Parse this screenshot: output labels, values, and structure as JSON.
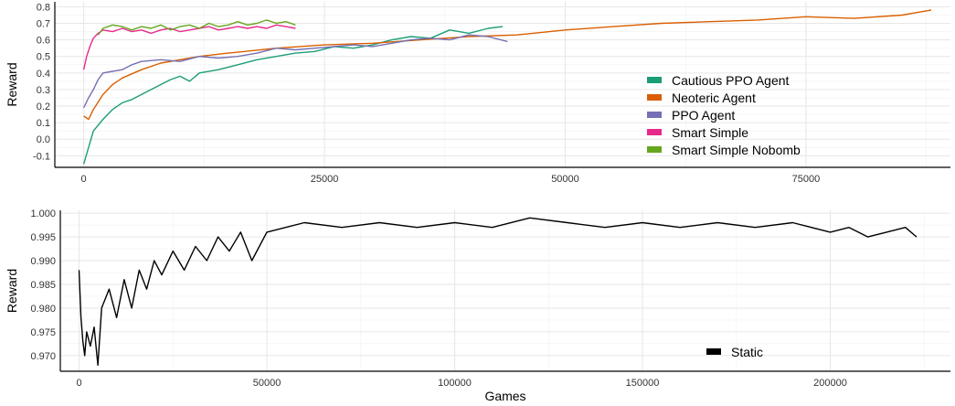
{
  "chart_data": [
    {
      "type": "line",
      "xlabel": "",
      "ylabel": "Reward",
      "xlim": [
        -3000,
        90000
      ],
      "ylim": [
        -0.17,
        0.83
      ],
      "xticks": [
        0,
        25000,
        50000,
        75000
      ],
      "xtick_labels": [
        "0",
        "25000",
        "50000",
        "75000"
      ],
      "yticks": [
        -0.1,
        0.0,
        0.1,
        0.2,
        0.3,
        0.4,
        0.5,
        0.6,
        0.7,
        0.8
      ],
      "ytick_labels": [
        "-0.1",
        "0.0",
        "0.1",
        "0.2",
        "0.3",
        "0.4",
        "0.5",
        "0.6",
        "0.7",
        "0.8"
      ],
      "grid": true,
      "legend_position": "bottom-right",
      "series": [
        {
          "name": "Cautious PPO Agent",
          "color": "#1b9e77",
          "x": [
            0,
            500,
            1000,
            2000,
            3000,
            4000,
            5000,
            6000,
            7000,
            8000,
            9000,
            10000,
            11000,
            12000,
            14000,
            16000,
            18000,
            20000,
            22000,
            24000,
            26000,
            28000,
            30000,
            32000,
            34000,
            36000,
            38000,
            40000,
            42000,
            43500
          ],
          "y": [
            -0.15,
            -0.05,
            0.05,
            0.12,
            0.18,
            0.22,
            0.24,
            0.27,
            0.3,
            0.33,
            0.36,
            0.38,
            0.35,
            0.4,
            0.42,
            0.45,
            0.48,
            0.5,
            0.52,
            0.53,
            0.56,
            0.55,
            0.57,
            0.6,
            0.62,
            0.61,
            0.66,
            0.64,
            0.67,
            0.68
          ]
        },
        {
          "name": "Neoteric Agent",
          "color": "#d95f02",
          "x": [
            0,
            500,
            1000,
            2000,
            3000,
            4000,
            6000,
            8000,
            10000,
            12000,
            15000,
            20000,
            25000,
            30000,
            35000,
            40000,
            45000,
            50000,
            55000,
            60000,
            65000,
            70000,
            75000,
            80000,
            85000,
            88000
          ],
          "y": [
            0.14,
            0.12,
            0.18,
            0.27,
            0.33,
            0.37,
            0.42,
            0.46,
            0.48,
            0.5,
            0.52,
            0.55,
            0.57,
            0.58,
            0.6,
            0.62,
            0.63,
            0.66,
            0.68,
            0.7,
            0.71,
            0.72,
            0.74,
            0.73,
            0.75,
            0.78
          ]
        },
        {
          "name": "PPO Agent",
          "color": "#7570b3",
          "x": [
            0,
            500,
            1000,
            1500,
            2000,
            3000,
            4000,
            5000,
            6000,
            8000,
            10000,
            12000,
            14000,
            16000,
            18000,
            20000,
            22000,
            24000,
            26000,
            28000,
            30000,
            32000,
            34000,
            36000,
            38000,
            40000,
            42000,
            44000
          ],
          "y": [
            0.19,
            0.25,
            0.3,
            0.36,
            0.4,
            0.41,
            0.42,
            0.45,
            0.47,
            0.48,
            0.47,
            0.5,
            0.49,
            0.5,
            0.52,
            0.55,
            0.54,
            0.55,
            0.56,
            0.57,
            0.56,
            0.58,
            0.6,
            0.61,
            0.6,
            0.63,
            0.62,
            0.59
          ]
        },
        {
          "name": "Smart Simple",
          "color": "#e7298a",
          "x": [
            0,
            300,
            700,
            1000,
            1500,
            2000,
            3000,
            4000,
            5000,
            6000,
            7000,
            8000,
            9000,
            10000,
            11000,
            12000,
            13000,
            14000,
            15000,
            16000,
            17000,
            18000,
            19000,
            20000,
            21000,
            22000
          ],
          "y": [
            0.42,
            0.5,
            0.57,
            0.61,
            0.64,
            0.66,
            0.65,
            0.67,
            0.65,
            0.66,
            0.64,
            0.66,
            0.67,
            0.65,
            0.66,
            0.67,
            0.68,
            0.66,
            0.67,
            0.68,
            0.67,
            0.68,
            0.67,
            0.69,
            0.68,
            0.67
          ]
        },
        {
          "name": "Smart Simple Nobomb",
          "color": "#66a61e",
          "x": [
            1500,
            2000,
            3000,
            4000,
            5000,
            6000,
            7000,
            8000,
            9000,
            10000,
            11000,
            12000,
            13000,
            14000,
            15000,
            16000,
            17000,
            18000,
            19000,
            20000,
            21000,
            22000
          ],
          "y": [
            0.63,
            0.67,
            0.69,
            0.68,
            0.66,
            0.68,
            0.67,
            0.69,
            0.66,
            0.68,
            0.69,
            0.67,
            0.7,
            0.68,
            0.69,
            0.71,
            0.69,
            0.7,
            0.72,
            0.7,
            0.71,
            0.69
          ]
        }
      ]
    },
    {
      "type": "line",
      "xlabel": "Games",
      "ylabel": "Reward",
      "xlim": [
        -5000,
        232000
      ],
      "ylim": [
        0.9667,
        1.0006
      ],
      "xticks": [
        0,
        50000,
        100000,
        150000,
        200000
      ],
      "xtick_labels": [
        "0",
        "50000",
        "100000",
        "150000",
        "200000"
      ],
      "yticks": [
        0.97,
        0.975,
        0.98,
        0.985,
        0.99,
        0.995,
        1.0
      ],
      "ytick_labels": [
        "0.970",
        "0.975",
        "0.980",
        "0.985",
        "0.990",
        "0.995",
        "1.000"
      ],
      "grid": true,
      "legend_position": "bottom-right",
      "series": [
        {
          "name": "Static",
          "color": "#000000",
          "x": [
            0,
            500,
            1000,
            1500,
            2000,
            3000,
            4000,
            5000,
            6000,
            8000,
            10000,
            12000,
            14000,
            16000,
            18000,
            20000,
            22000,
            25000,
            28000,
            31000,
            34000,
            37000,
            40000,
            43000,
            46000,
            50000,
            55000,
            60000,
            70000,
            80000,
            90000,
            100000,
            110000,
            120000,
            130000,
            140000,
            150000,
            160000,
            170000,
            180000,
            190000,
            200000,
            205000,
            210000,
            215000,
            220000,
            223000
          ],
          "y": [
            0.988,
            0.978,
            0.973,
            0.97,
            0.975,
            0.972,
            0.976,
            0.968,
            0.98,
            0.984,
            0.978,
            0.986,
            0.98,
            0.988,
            0.984,
            0.99,
            0.987,
            0.992,
            0.988,
            0.993,
            0.99,
            0.995,
            0.992,
            0.996,
            0.99,
            0.996,
            0.997,
            0.998,
            0.997,
            0.998,
            0.997,
            0.998,
            0.997,
            0.999,
            0.998,
            0.997,
            0.998,
            0.997,
            0.998,
            0.997,
            0.998,
            0.996,
            0.997,
            0.995,
            0.996,
            0.997,
            0.995
          ]
        }
      ]
    }
  ]
}
